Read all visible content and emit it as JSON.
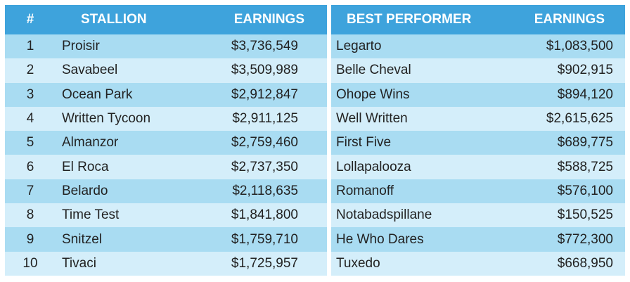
{
  "headers": {
    "num": "#",
    "stallion": "STALLION",
    "earnings": "EARNINGS",
    "best_performer": "BEST PERFORMER",
    "best_earnings": "EARNINGS"
  },
  "rows": [
    {
      "num": "1",
      "stallion": "Proisir",
      "earnings": "$3,736,549",
      "performer": "Legarto",
      "perf_earnings": "$1,083,500"
    },
    {
      "num": "2",
      "stallion": "Savabeel",
      "earnings": "$3,509,989",
      "performer": "Belle Cheval",
      "perf_earnings": "$902,915"
    },
    {
      "num": "3",
      "stallion": "Ocean Park",
      "earnings": "$2,912,847",
      "performer": "Ohope Wins",
      "perf_earnings": "$894,120"
    },
    {
      "num": "4",
      "stallion": "Written Tycoon",
      "earnings": "$2,911,125",
      "performer": "Well Written",
      "perf_earnings": "$2,615,625"
    },
    {
      "num": "5",
      "stallion": "Almanzor",
      "earnings": "$2,759,460",
      "performer": "First Five",
      "perf_earnings": "$689,775"
    },
    {
      "num": "6",
      "stallion": "El Roca",
      "earnings": "$2,737,350",
      "performer": "Lollapalooza",
      "perf_earnings": "$588,725"
    },
    {
      "num": "7",
      "stallion": "Belardo",
      "earnings": "$2,118,635",
      "performer": "Romanoff",
      "perf_earnings": "$576,100"
    },
    {
      "num": "8",
      "stallion": "Time Test",
      "earnings": "$1,841,800",
      "performer": "Notabadspillane",
      "perf_earnings": "$150,525"
    },
    {
      "num": "9",
      "stallion": "Snitzel",
      "earnings": "$1,759,710",
      "performer": "He Who Dares",
      "perf_earnings": "$772,300"
    },
    {
      "num": "10",
      "stallion": "Tivaci",
      "earnings": "$1,725,957",
      "performer": "Tuxedo",
      "perf_earnings": "$668,950"
    }
  ]
}
